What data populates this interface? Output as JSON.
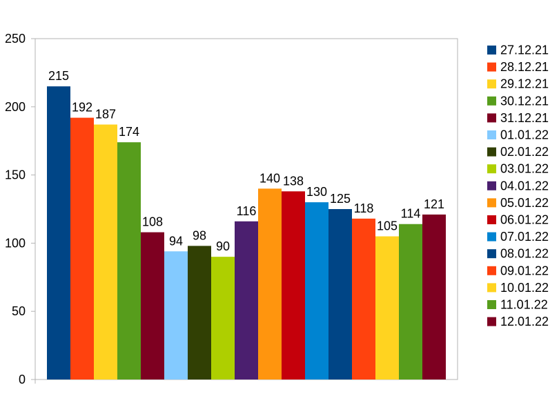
{
  "chart_data": {
    "type": "bar",
    "title": "",
    "xlabel": "",
    "ylabel": "",
    "ylim": [
      0,
      250
    ],
    "yticks": [
      0,
      50,
      100,
      150,
      200,
      250
    ],
    "grid": false,
    "legend_position": "right",
    "series": [
      {
        "name": "27.12.21",
        "value": 215,
        "color": "#004586"
      },
      {
        "name": "28.12.21",
        "value": 192,
        "color": "#ff420e"
      },
      {
        "name": "29.12.21",
        "value": 187,
        "color": "#ffd320"
      },
      {
        "name": "30.12.21",
        "value": 174,
        "color": "#579d1c"
      },
      {
        "name": "31.12.21",
        "value": 108,
        "color": "#7e0021"
      },
      {
        "name": "01.01.22",
        "value": 94,
        "color": "#83caff"
      },
      {
        "name": "02.01.22",
        "value": 98,
        "color": "#314004"
      },
      {
        "name": "03.01.22",
        "value": 90,
        "color": "#aecf00"
      },
      {
        "name": "04.01.22",
        "value": 116,
        "color": "#4b1f6f"
      },
      {
        "name": "05.01.22",
        "value": 140,
        "color": "#ff950e"
      },
      {
        "name": "06.01.22",
        "value": 138,
        "color": "#c5000b"
      },
      {
        "name": "07.01.22",
        "value": 130,
        "color": "#0084d1"
      },
      {
        "name": "08.01.22",
        "value": 125,
        "color": "#004586"
      },
      {
        "name": "09.01.22",
        "value": 118,
        "color": "#ff420e"
      },
      {
        "name": "10.01.22",
        "value": 105,
        "color": "#ffd320"
      },
      {
        "name": "11.01.22",
        "value": 114,
        "color": "#579d1c"
      },
      {
        "name": "12.01.22",
        "value": 121,
        "color": "#7e0021"
      }
    ]
  }
}
